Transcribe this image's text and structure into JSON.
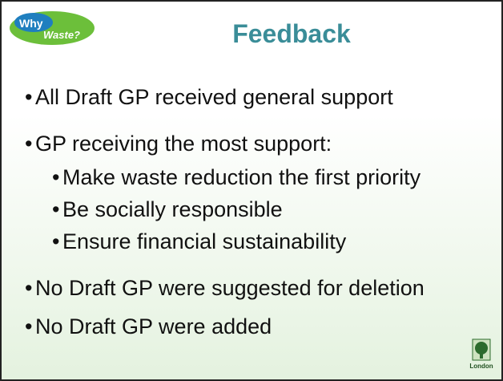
{
  "header": {
    "title": "Feedback",
    "logo": [
      "Why",
      "Waste?"
    ]
  },
  "bullets": [
    {
      "text": "All Draft GP received general support"
    },
    {
      "text": "GP receiving the most support:",
      "sub": [
        "Make waste reduction the first priority",
        "Be socially responsible",
        "Ensure financial sustainability"
      ]
    },
    {
      "text": "No Draft GP were suggested for deletion"
    },
    {
      "text": "No Draft GP were added"
    }
  ],
  "footer": {
    "crest": "London"
  }
}
